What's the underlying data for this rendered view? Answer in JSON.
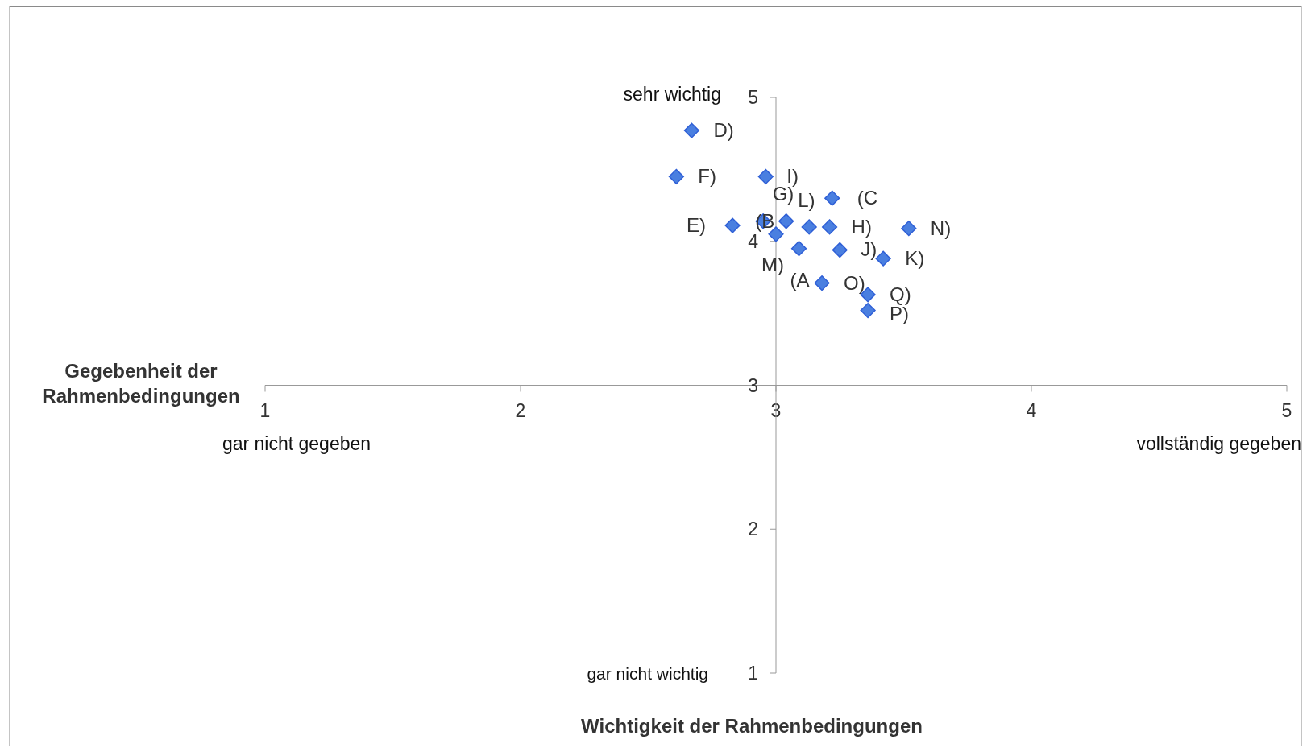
{
  "chart_data": {
    "type": "scatter",
    "xlabel": "Wichtigkeit der Rahmenbedingungen",
    "ylabel": "Gegebenheit der Rahmenbedingungen",
    "xlim": [
      1,
      5
    ],
    "ylim": [
      1,
      5
    ],
    "xticks": [
      1,
      2,
      3,
      4,
      5
    ],
    "yticks": [
      {
        "value": 1,
        "label": "1"
      },
      {
        "value": 2,
        "label": "2"
      },
      {
        "value": 3,
        "label": "3"
      },
      {
        "value": 4,
        "label": "4"
      },
      {
        "value": 5,
        "label": "5"
      }
    ],
    "grid": false,
    "marker": "diamond",
    "series": [
      {
        "color": "#4a7fe0",
        "x": [
          2.67,
          2.61,
          2.96,
          3.22,
          2.83,
          2.95,
          3.04,
          3.13,
          3.21,
          3.52,
          3.0,
          3.09,
          3.25,
          3.42,
          3.18,
          3.36,
          3.36
        ],
        "values": [
          4.77,
          4.45,
          4.45,
          4.3,
          4.11,
          4.14,
          4.14,
          4.1,
          4.1,
          4.09,
          4.05,
          3.95,
          3.94,
          3.88,
          3.71,
          3.63,
          3.52
        ]
      }
    ],
    "annotations": [
      "sehr wichtig",
      "gar nicht wichtig",
      "gar nicht gegeben",
      "vollständig gegeben",
      {
        "text": "D)",
        "x": 2.67,
        "y": 4.77
      },
      {
        "text": "F)",
        "x": 2.61,
        "y": 4.45
      },
      {
        "text": "I)",
        "x": 2.96,
        "y": 4.45
      },
      {
        "text": "(C",
        "x": 3.22,
        "y": 4.3
      },
      {
        "text": "E)",
        "x": 2.83,
        "y": 4.11
      },
      {
        "text": "(B",
        "x": 2.95,
        "y": 4.14
      },
      {
        "text": "G)",
        "x": 3.04,
        "y": 4.14
      },
      {
        "text": "L)",
        "x": 3.13,
        "y": 4.1
      },
      {
        "text": "H)",
        "x": 3.21,
        "y": 4.1
      },
      {
        "text": "N)",
        "x": 3.52,
        "y": 4.09
      },
      {
        "text": "M)",
        "x": 3.0,
        "y": 4.05
      },
      {
        "text": "(A",
        "x": 3.09,
        "y": 3.95
      },
      {
        "text": "J)",
        "x": 3.25,
        "y": 3.94
      },
      {
        "text": "K)",
        "x": 3.42,
        "y": 3.88
      },
      {
        "text": "O)",
        "x": 3.18,
        "y": 3.71
      },
      {
        "text": "Q)",
        "x": 3.36,
        "y": 3.63
      },
      {
        "text": "P)",
        "x": 3.36,
        "y": 3.52
      }
    ]
  }
}
